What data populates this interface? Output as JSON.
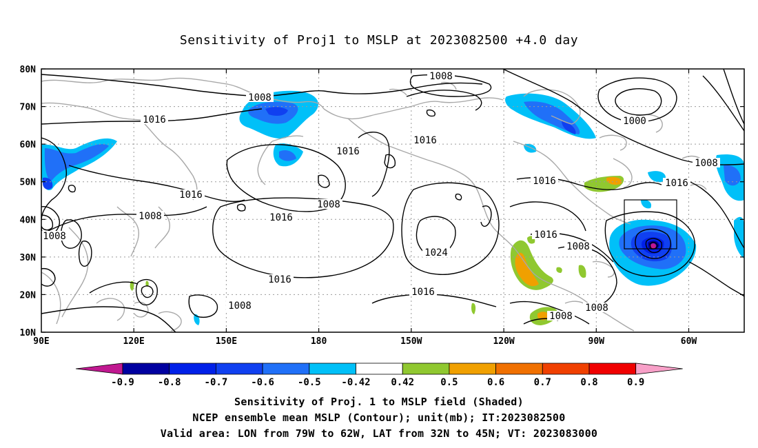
{
  "title": "Sensitivity of Proj1 to MSLP at 2023082500 +4.0 day",
  "axes": {
    "lat_labels": [
      "80N",
      "70N",
      "60N",
      "50N",
      "40N",
      "30N",
      "20N",
      "10N"
    ],
    "lon_labels": [
      "90E",
      "120E",
      "150E",
      "180",
      "150W",
      "120W",
      "90W",
      "60W"
    ]
  },
  "contour_labels": [
    {
      "text": "1008",
      "id": "c1"
    },
    {
      "text": "1008",
      "id": "c2"
    },
    {
      "text": "1016",
      "id": "c3"
    },
    {
      "text": "1016",
      "id": "c4"
    },
    {
      "text": "1016",
      "id": "c5"
    },
    {
      "text": "1000",
      "id": "c6"
    },
    {
      "text": "1008",
      "id": "c7"
    },
    {
      "text": "1016",
      "id": "c8"
    },
    {
      "text": "1016",
      "id": "c9"
    },
    {
      "text": "1016",
      "id": "c10"
    },
    {
      "text": "1008",
      "id": "c11"
    },
    {
      "text": "1008",
      "id": "c12"
    },
    {
      "text": "1008",
      "id": "c13"
    },
    {
      "text": "1016",
      "id": "c14"
    },
    {
      "text": "1024",
      "id": "c15"
    },
    {
      "text": "1016",
      "id": "c16"
    },
    {
      "text": "1016",
      "id": "c17"
    },
    {
      "text": "1008",
      "id": "c18"
    },
    {
      "text": "1016",
      "id": "c19"
    },
    {
      "text": "1008",
      "id": "c20"
    },
    {
      "text": "1008",
      "id": "c21"
    },
    {
      "text": "1008",
      "id": "c22"
    }
  ],
  "colorbar": {
    "labels": [
      "-0.9",
      "-0.8",
      "-0.7",
      "-0.6",
      "-0.5",
      "-0.42",
      "0.42",
      "0.5",
      "0.6",
      "0.7",
      "0.8",
      "0.9"
    ],
    "colors": [
      "#0000a0",
      "#0020e8",
      "#1040f0",
      "#2070f8",
      "#00c0f8",
      "#ffffff",
      "#90c830",
      "#f0a000",
      "#f07000",
      "#f04000",
      "#f00000"
    ],
    "min_color": "#c01890",
    "max_color": "#f8a0c8"
  },
  "captions": {
    "line1": "Sensitivity of Proj. 1 to MSLP field (Shaded)",
    "line2": "NCEP ensemble mean MSLP (Contour); unit(mb); IT:2023082500",
    "line3": "Valid area: LON from 79W to 62W, LAT from 32N to 45N; VT: 2023083000"
  }
}
